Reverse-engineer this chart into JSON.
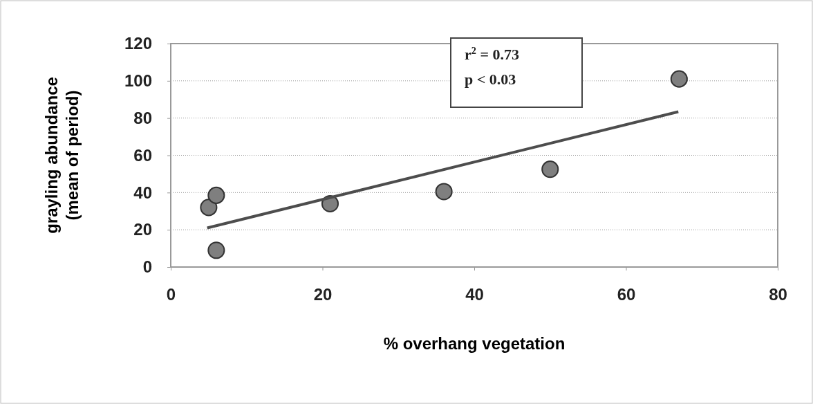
{
  "chart_data": {
    "type": "scatter",
    "xlabel": "% overhang vegetation",
    "ylabel": "grayling abundance\n(mean of period)",
    "xlim": [
      0,
      80
    ],
    "xticks": [
      0,
      20,
      40,
      60,
      80
    ],
    "ylim": [
      0,
      120
    ],
    "yticks": [
      0,
      20,
      40,
      60,
      80,
      100,
      120
    ],
    "grid": "y",
    "series": [
      {
        "marker": "circle",
        "color": "#7f7f7f",
        "x": [
          5,
          6,
          6,
          21,
          36,
          50,
          67
        ],
        "values": [
          32,
          38.5,
          9,
          34,
          40.5,
          52.5,
          101
        ]
      },
      {
        "type": "line",
        "color": "#4d4d4d",
        "x": [
          4.8,
          66.9
        ],
        "values": [
          21,
          83.4
        ]
      }
    ],
    "annotations": [
      "r$^{2}$ = 0.73",
      "p < 0.03"
    ]
  }
}
